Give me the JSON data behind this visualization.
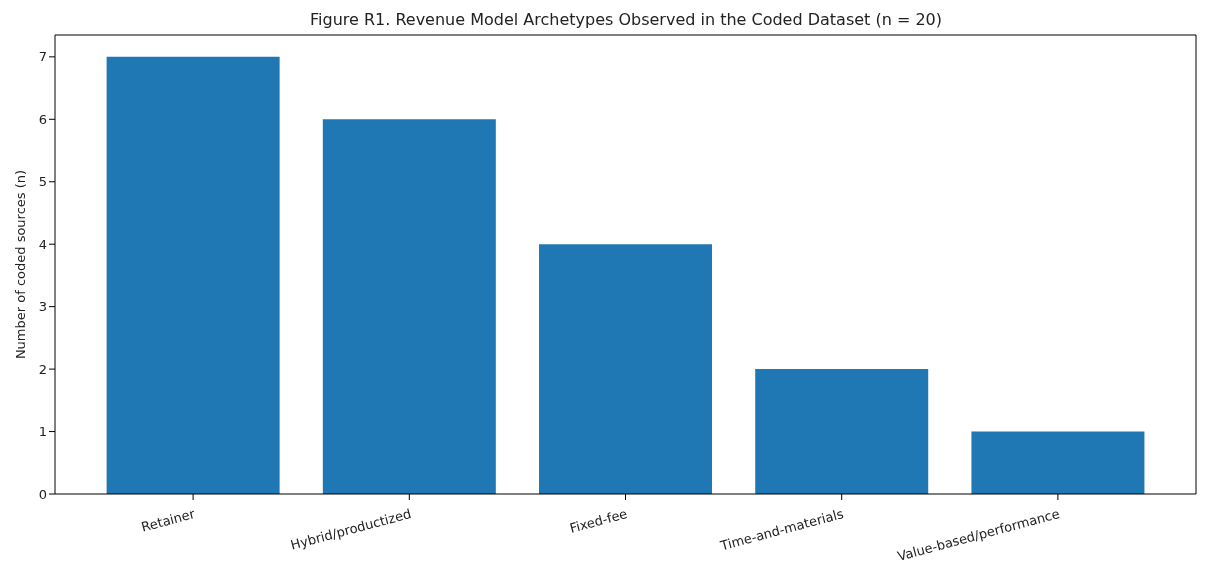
{
  "chart_data": {
    "type": "bar",
    "title": "Figure R1. Revenue Model Archetypes Observed in the Coded Dataset (n = 20)",
    "ylabel": "Number of coded sources (n)",
    "categories": [
      "Retainer",
      "Hybrid/productized",
      "Fixed-fee",
      "Time-and-materials",
      "Value-based/performance"
    ],
    "values": [
      7,
      6,
      4,
      2,
      1
    ],
    "color": "#1f77b4",
    "ylim": [
      0,
      7.35
    ],
    "yticks": [
      0,
      1,
      2,
      3,
      4,
      5,
      6,
      7
    ],
    "grid": false,
    "legend": false
  }
}
